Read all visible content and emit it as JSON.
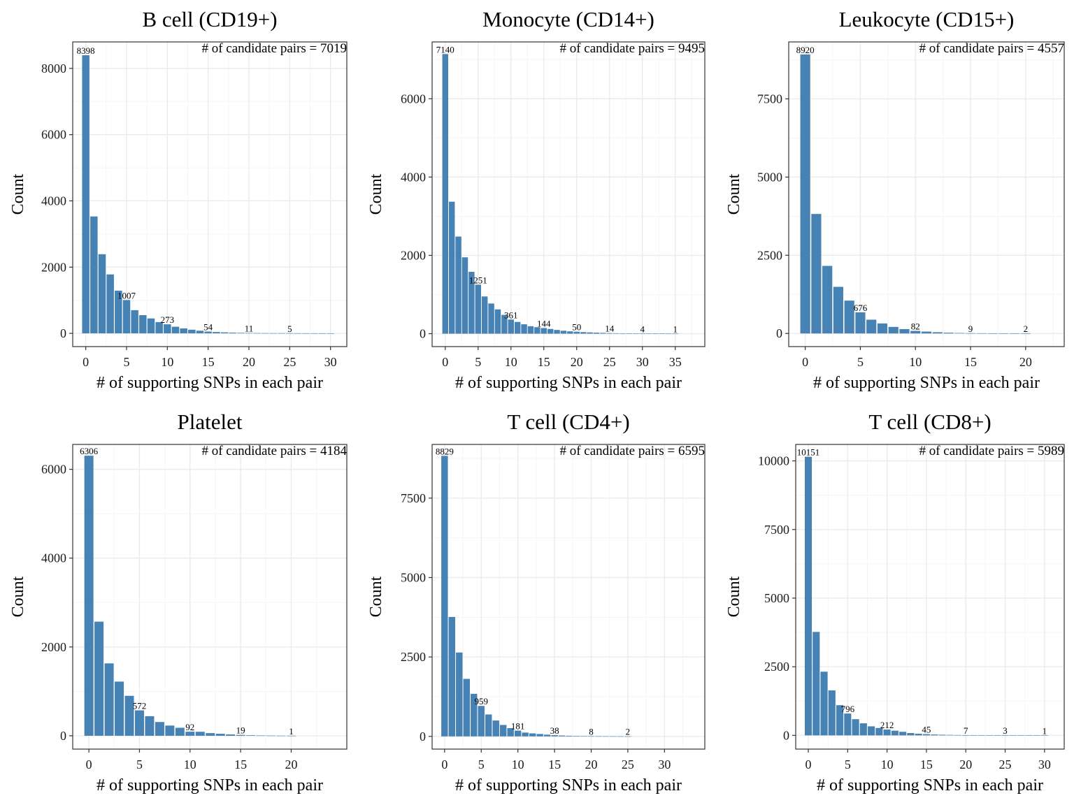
{
  "bar_color": "#4682B4",
  "grid_major_color": "#EBEBEB",
  "grid_minor_color": "#F5F5F5",
  "chart_data": [
    {
      "type": "bar",
      "title": "B cell (CD19+)",
      "xlabel": "# of supporting SNPs in each pair",
      "ylabel": "Count",
      "annotation": "# of candidate pairs = 7019",
      "xlim": [
        -1.6,
        32.0
      ],
      "ylim": [
        -400,
        8800
      ],
      "xticks": [
        0,
        5,
        10,
        15,
        20,
        25,
        30
      ],
      "yticks": [
        0,
        2000,
        4000,
        6000,
        8000
      ],
      "x": [
        0,
        1,
        2,
        3,
        4,
        5,
        6,
        7,
        8,
        9,
        10,
        11,
        12,
        13,
        14,
        15,
        16,
        17,
        18,
        19,
        20,
        21,
        22,
        23,
        24,
        25,
        26,
        27,
        28,
        29,
        30
      ],
      "values": [
        8398,
        3530,
        2390,
        1780,
        1290,
        1007,
        700,
        550,
        450,
        340,
        273,
        200,
        150,
        110,
        80,
        54,
        40,
        30,
        22,
        16,
        11,
        8,
        6,
        5,
        5,
        5,
        3,
        2,
        1,
        1,
        1
      ],
      "data_labels": [
        {
          "x": 0,
          "label": "8398"
        },
        {
          "x": 5,
          "label": "1007"
        },
        {
          "x": 10,
          "label": "273"
        },
        {
          "x": 15,
          "label": "54"
        },
        {
          "x": 20,
          "label": "11"
        },
        {
          "x": 25,
          "label": "5"
        }
      ]
    },
    {
      "type": "bar",
      "title": "Monocyte (CD14+)",
      "xlabel": "# of supporting SNPs in each pair",
      "ylabel": "Count",
      "annotation": "# of candidate pairs = 9495",
      "xlim": [
        -2.0,
        39.5
      ],
      "ylim": [
        -330,
        7450
      ],
      "xticks": [
        0,
        5,
        10,
        15,
        20,
        25,
        30,
        35
      ],
      "yticks": [
        0,
        2000,
        4000,
        6000
      ],
      "x": [
        0,
        1,
        2,
        3,
        4,
        5,
        6,
        7,
        8,
        9,
        10,
        11,
        12,
        13,
        14,
        15,
        16,
        17,
        18,
        19,
        20,
        21,
        22,
        23,
        24,
        25,
        26,
        27,
        28,
        29,
        30,
        31,
        32,
        33,
        34,
        35
      ],
      "values": [
        7140,
        3370,
        2480,
        1950,
        1580,
        1251,
        950,
        770,
        620,
        480,
        361,
        300,
        240,
        190,
        165,
        144,
        120,
        95,
        75,
        60,
        50,
        40,
        33,
        26,
        20,
        14,
        11,
        9,
        7,
        5,
        4,
        3,
        2,
        2,
        1,
        1
      ],
      "data_labels": [
        {
          "x": 0,
          "label": "7140"
        },
        {
          "x": 5,
          "label": "1251"
        },
        {
          "x": 10,
          "label": "361"
        },
        {
          "x": 15,
          "label": "144"
        },
        {
          "x": 20,
          "label": "50"
        },
        {
          "x": 25,
          "label": "14"
        },
        {
          "x": 30,
          "label": "4"
        },
        {
          "x": 35,
          "label": "1"
        }
      ]
    },
    {
      "type": "bar",
      "title": "Leukocyte (CD15+)",
      "xlabel": "# of supporting SNPs in each pair",
      "ylabel": "Count",
      "annotation": "# of candidate pairs = 4557",
      "xlim": [
        -1.5,
        23.5
      ],
      "ylim": [
        -420,
        9320
      ],
      "xticks": [
        0,
        5,
        10,
        15,
        20
      ],
      "yticks": [
        0,
        2500,
        5000,
        7500
      ],
      "x": [
        0,
        1,
        2,
        3,
        4,
        5,
        6,
        7,
        8,
        9,
        10,
        11,
        12,
        13,
        14,
        15,
        16,
        17,
        18,
        19,
        20
      ],
      "values": [
        8920,
        3820,
        2160,
        1490,
        1050,
        676,
        440,
        320,
        210,
        140,
        82,
        60,
        40,
        25,
        15,
        9,
        6,
        4,
        3,
        2,
        2
      ],
      "data_labels": [
        {
          "x": 0,
          "label": "8920"
        },
        {
          "x": 5,
          "label": "676"
        },
        {
          "x": 10,
          "label": "82"
        },
        {
          "x": 15,
          "label": "9"
        },
        {
          "x": 20,
          "label": "2"
        }
      ]
    },
    {
      "type": "bar",
      "title": "Platelet",
      "xlabel": "# of supporting SNPs in each pair",
      "ylabel": "Count",
      "annotation": "# of candidate pairs = 4184",
      "xlim": [
        -1.6,
        25.5
      ],
      "ylim": [
        -300,
        6560
      ],
      "xticks": [
        0,
        5,
        10,
        15,
        20
      ],
      "yticks": [
        0,
        2000,
        4000,
        6000
      ],
      "x": [
        0,
        1,
        2,
        3,
        4,
        5,
        6,
        7,
        8,
        9,
        10,
        11,
        12,
        13,
        14,
        15,
        16,
        17,
        18,
        19,
        20
      ],
      "values": [
        6306,
        2570,
        1630,
        1220,
        900,
        572,
        440,
        310,
        230,
        180,
        92,
        90,
        60,
        45,
        30,
        19,
        12,
        6,
        4,
        2,
        1
      ],
      "data_labels": [
        {
          "x": 0,
          "label": "6306"
        },
        {
          "x": 5,
          "label": "572"
        },
        {
          "x": 10,
          "label": "92"
        },
        {
          "x": 15,
          "label": "19"
        },
        {
          "x": 20,
          "label": "1"
        }
      ]
    },
    {
      "type": "bar",
      "title": "T cell (CD4+)",
      "xlabel": "# of supporting SNPs in each pair",
      "ylabel": "Count",
      "annotation": "# of candidate pairs = 6595",
      "xlim": [
        -1.7,
        35.5
      ],
      "ylim": [
        -400,
        9190
      ],
      "xticks": [
        0,
        5,
        10,
        15,
        20,
        25,
        30
      ],
      "yticks": [
        0,
        2500,
        5000,
        7500
      ],
      "x": [
        0,
        1,
        2,
        3,
        4,
        5,
        6,
        7,
        8,
        9,
        10,
        11,
        12,
        13,
        14,
        15,
        16,
        17,
        18,
        19,
        20,
        21,
        22,
        23,
        24,
        25
      ],
      "values": [
        8829,
        3760,
        2640,
        1810,
        1340,
        959,
        690,
        500,
        360,
        260,
        181,
        120,
        95,
        75,
        55,
        38,
        28,
        20,
        15,
        11,
        8,
        6,
        5,
        4,
        3,
        2
      ],
      "data_labels": [
        {
          "x": 0,
          "label": "8829"
        },
        {
          "x": 5,
          "label": "959"
        },
        {
          "x": 10,
          "label": "181"
        },
        {
          "x": 15,
          "label": "38"
        },
        {
          "x": 20,
          "label": "8"
        },
        {
          "x": 25,
          "label": "2"
        }
      ]
    },
    {
      "type": "bar",
      "title": "T cell (CD8+)",
      "xlabel": "# of supporting SNPs in each pair",
      "ylabel": "Count",
      "annotation": "# of candidate pairs = 5989",
      "xlim": [
        -1.6,
        32.5
      ],
      "ylim": [
        -500,
        10600
      ],
      "xticks": [
        0,
        5,
        10,
        15,
        20,
        25,
        30
      ],
      "yticks": [
        0,
        2500,
        5000,
        7500,
        10000
      ],
      "x": [
        0,
        1,
        2,
        3,
        4,
        5,
        6,
        7,
        8,
        9,
        10,
        11,
        12,
        13,
        14,
        15,
        16,
        17,
        18,
        19,
        20,
        21,
        22,
        23,
        24,
        25,
        26,
        27,
        28,
        29,
        30
      ],
      "values": [
        10151,
        3770,
        2320,
        1640,
        1100,
        796,
        590,
        440,
        330,
        270,
        212,
        170,
        130,
        85,
        60,
        45,
        32,
        24,
        17,
        12,
        7,
        5,
        4,
        4,
        3,
        3,
        2,
        2,
        1,
        1,
        1
      ],
      "data_labels": [
        {
          "x": 0,
          "label": "10151"
        },
        {
          "x": 5,
          "label": "796"
        },
        {
          "x": 10,
          "label": "212"
        },
        {
          "x": 15,
          "label": "45"
        },
        {
          "x": 20,
          "label": "7"
        },
        {
          "x": 25,
          "label": "3"
        },
        {
          "x": 30,
          "label": "1"
        }
      ]
    }
  ]
}
